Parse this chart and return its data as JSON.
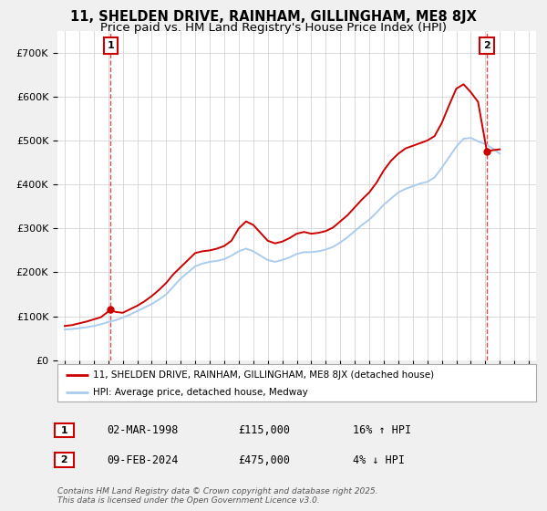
{
  "title": "11, SHELDEN DRIVE, RAINHAM, GILLINGHAM, ME8 8JX",
  "subtitle": "Price paid vs. HM Land Registry's House Price Index (HPI)",
  "title_fontsize": 10.5,
  "subtitle_fontsize": 9.5,
  "red_label": "11, SHELDEN DRIVE, RAINHAM, GILLINGHAM, ME8 8JX (detached house)",
  "blue_label": "HPI: Average price, detached house, Medway",
  "sale1_date": "02-MAR-1998",
  "sale1_price": 115000,
  "sale1_pct": "16% ↑ HPI",
  "sale2_date": "09-FEB-2024",
  "sale2_price": 475000,
  "sale2_pct": "4% ↓ HPI",
  "footnote": "Contains HM Land Registry data © Crown copyright and database right 2025.\nThis data is licensed under the Open Government Licence v3.0.",
  "ylim": [
    0,
    750000
  ],
  "xlim_start": 1994.5,
  "xlim_end": 2027.5,
  "background_color": "#f0f0f0",
  "plot_bg_color": "#ffffff",
  "grid_color": "#cccccc",
  "red_color": "#cc0000",
  "blue_color": "#aaccee",
  "hpi_years": [
    1995.0,
    1995.5,
    1996.0,
    1996.5,
    1997.0,
    1997.5,
    1998.0,
    1998.5,
    1999.0,
    1999.5,
    2000.0,
    2000.5,
    2001.0,
    2001.5,
    2002.0,
    2002.5,
    2003.0,
    2003.5,
    2004.0,
    2004.5,
    2005.0,
    2005.5,
    2006.0,
    2006.5,
    2007.0,
    2007.5,
    2008.0,
    2008.5,
    2009.0,
    2009.5,
    2010.0,
    2010.5,
    2011.0,
    2011.5,
    2012.0,
    2012.5,
    2013.0,
    2013.5,
    2014.0,
    2014.5,
    2015.0,
    2015.5,
    2016.0,
    2016.5,
    2017.0,
    2017.5,
    2018.0,
    2018.5,
    2019.0,
    2019.5,
    2020.0,
    2020.5,
    2021.0,
    2021.5,
    2022.0,
    2022.5,
    2023.0,
    2023.5,
    2024.0,
    2024.5,
    2025.0
  ],
  "hpi_values": [
    70000,
    71000,
    73000,
    75000,
    78000,
    82000,
    87000,
    91000,
    97000,
    104000,
    112000,
    120000,
    128000,
    138000,
    150000,
    168000,
    186000,
    200000,
    214000,
    220000,
    224000,
    226000,
    230000,
    238000,
    248000,
    254000,
    248000,
    238000,
    228000,
    224000,
    228000,
    234000,
    242000,
    246000,
    246000,
    248000,
    252000,
    258000,
    268000,
    280000,
    294000,
    308000,
    320000,
    336000,
    354000,
    368000,
    382000,
    390000,
    396000,
    402000,
    406000,
    416000,
    438000,
    462000,
    486000,
    504000,
    506000,
    498000,
    492000,
    482000,
    470000
  ],
  "red_years": [
    1995.0,
    1995.5,
    1996.0,
    1996.5,
    1997.0,
    1997.5,
    1998.17,
    1998.5,
    1999.0,
    1999.5,
    2000.0,
    2000.5,
    2001.0,
    2001.5,
    2002.0,
    2002.5,
    2003.0,
    2003.5,
    2004.0,
    2004.5,
    2005.0,
    2005.5,
    2006.0,
    2006.5,
    2007.0,
    2007.5,
    2008.0,
    2008.5,
    2009.0,
    2009.5,
    2010.0,
    2010.5,
    2011.0,
    2011.5,
    2012.0,
    2012.5,
    2013.0,
    2013.5,
    2014.0,
    2014.5,
    2015.0,
    2015.5,
    2016.0,
    2016.5,
    2017.0,
    2017.5,
    2018.0,
    2018.5,
    2019.0,
    2019.5,
    2020.0,
    2020.5,
    2021.0,
    2021.5,
    2022.0,
    2022.5,
    2023.0,
    2023.5,
    2024.11,
    2024.5,
    2025.0
  ],
  "red_values": [
    78000,
    80000,
    84000,
    88000,
    93000,
    98000,
    115000,
    110000,
    108000,
    116000,
    124000,
    134000,
    146000,
    160000,
    176000,
    196000,
    212000,
    228000,
    244000,
    248000,
    250000,
    254000,
    260000,
    272000,
    300000,
    316000,
    308000,
    290000,
    272000,
    266000,
    270000,
    278000,
    288000,
    292000,
    288000,
    290000,
    294000,
    302000,
    316000,
    330000,
    348000,
    366000,
    382000,
    404000,
    432000,
    454000,
    470000,
    482000,
    488000,
    494000,
    500000,
    510000,
    540000,
    580000,
    618000,
    628000,
    610000,
    588000,
    475000,
    478000,
    480000
  ]
}
